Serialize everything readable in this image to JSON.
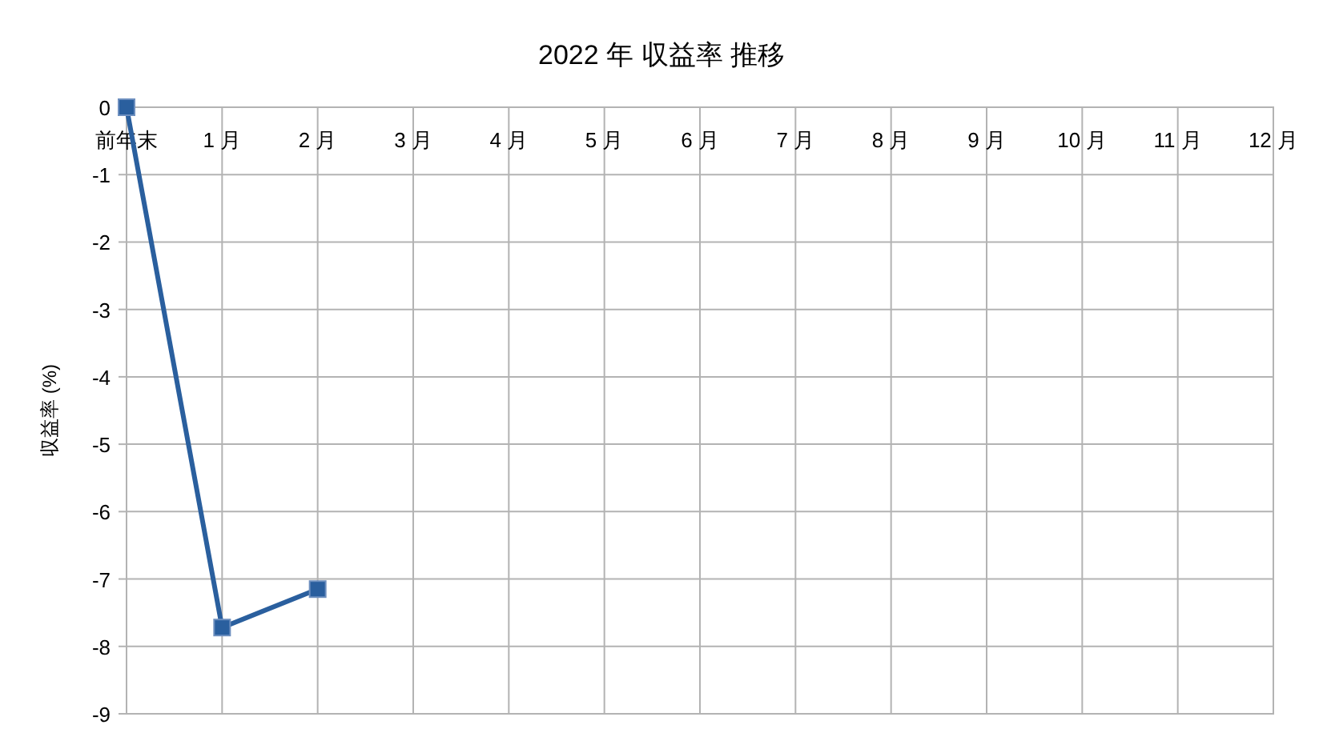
{
  "chart_data": {
    "type": "line",
    "title": "2022 年 収益率 推移",
    "ylabel": "収益率 (%)",
    "categories": [
      "前年末",
      "1 月",
      "2 月",
      "3 月",
      "4 月",
      "5 月",
      "6 月",
      "7 月",
      "8 月",
      "9 月",
      "10 月",
      "11 月",
      "12 月"
    ],
    "series": [
      {
        "color": "#2a5f9e",
        "values": [
          0,
          -7.72,
          -7.15,
          null,
          null,
          null,
          null,
          null,
          null,
          null,
          null,
          null,
          null
        ]
      }
    ],
    "ylim": [
      -9,
      0
    ],
    "yticks": [
      0,
      -1,
      -2,
      -3,
      -4,
      -5,
      -6,
      -7,
      -8,
      -9
    ],
    "grid": true,
    "marker": "square",
    "line_style": "solid"
  }
}
